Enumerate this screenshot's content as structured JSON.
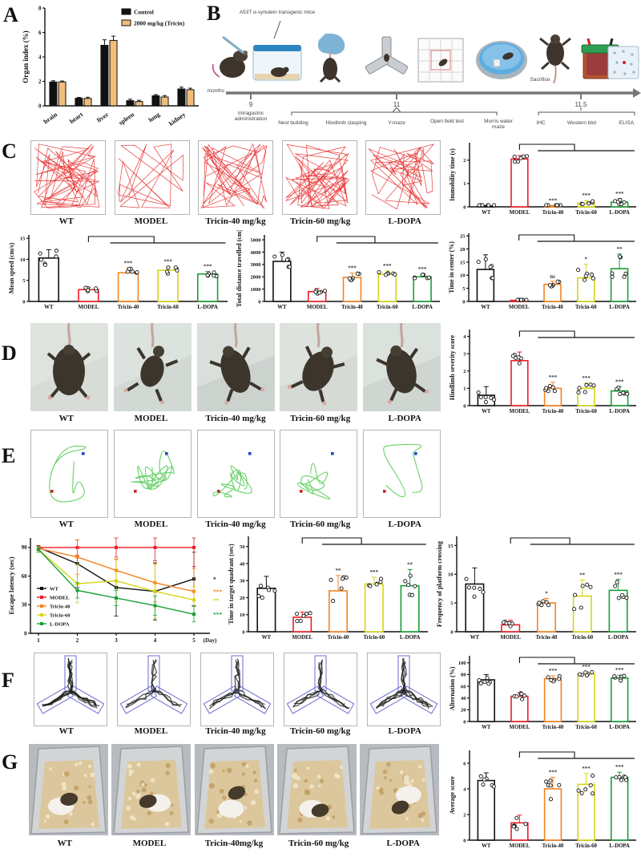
{
  "figure": {
    "panel_labels": {
      "A": "A",
      "B": "B",
      "C": "C",
      "D": "D",
      "E": "E",
      "F": "F",
      "G": "G"
    },
    "groups_full": [
      "WT",
      "MODEL",
      "Tricin-40 mg/kg",
      "Tricin-60 mg/kg",
      "L-DOPA"
    ],
    "groups_full_g": [
      "WT",
      "MODEL",
      "Tricin-40mg/kg",
      "Tricin-60 mg/kg",
      "L-DOPA"
    ],
    "groups_short": [
      "WT",
      "MODEL",
      "Tricin-40",
      "Tricin-60",
      "L-DOPA"
    ],
    "group_colors": [
      "#111111",
      "#ee1c25",
      "#f58220",
      "#d5d517",
      "#18a037"
    ]
  },
  "timeline": {
    "annotation": "A53T α-synulein transgenic mice",
    "axis_label": "months",
    "sacrifice_label": "Sacrifice",
    "tick_9": "9",
    "tick_11": "11",
    "tick_115": "11.5",
    "label_9": "Intragastric administration",
    "tests_11": [
      "Nest building",
      "Hindlimb clasping",
      "Y-maze",
      "Open field test",
      "Morris water maze"
    ],
    "assays_115": [
      "IHC",
      "Western blot",
      "ELISA"
    ]
  },
  "chart_data": [
    {
      "id": "organ-index",
      "type": "grouped-bar",
      "ylabel": "Organ index (%)",
      "categories": [
        "brain",
        "heart",
        "liver",
        "spleen",
        "lung",
        "kidney"
      ],
      "series": [
        {
          "name": "Control",
          "fill": "#111111",
          "values": [
            1.95,
            0.62,
            4.95,
            0.42,
            0.82,
            1.38
          ],
          "errors": [
            0.1,
            0.07,
            0.45,
            0.12,
            0.1,
            0.15
          ]
        },
        {
          "name": "2000 mg/kg (Tricin)",
          "fill": "#f2bc79",
          "values": [
            1.95,
            0.6,
            5.35,
            0.35,
            0.72,
            1.32
          ],
          "errors": [
            0.08,
            0.1,
            0.35,
            0.1,
            0.12,
            0.12
          ]
        }
      ],
      "ylim": [
        0,
        8
      ],
      "yticks": [
        0,
        2,
        4,
        6,
        8
      ],
      "legend_position": "top-right"
    },
    {
      "id": "immobility-time",
      "type": "bar",
      "ylabel": "Immobility time (s)",
      "categories": [
        "WT",
        "MODEL",
        "Tricin-40",
        "Tricin-60",
        "L-DOPA"
      ],
      "values": [
        0.03,
        2.05,
        0.03,
        0.15,
        0.2
      ],
      "errors": [
        0.02,
        0.15,
        0.03,
        0.12,
        0.15
      ],
      "sig": [
        "",
        "",
        "***",
        "***",
        "***"
      ],
      "ylim": [
        0,
        2.75
      ],
      "yticks": [
        0,
        1,
        2
      ],
      "bracket": true
    },
    {
      "id": "mean-speed",
      "type": "bar",
      "ylabel": "Mean speed (cm/s)",
      "categories": [
        "WT",
        "MODEL",
        "Tricin-40",
        "Tricin-60",
        "L-DOPA"
      ],
      "values": [
        10.3,
        2.8,
        6.8,
        7.4,
        6.5
      ],
      "errors": [
        2.0,
        0.6,
        1.1,
        0.9,
        0.6
      ],
      "sig": [
        "",
        "",
        "***",
        "***",
        "***"
      ],
      "ylim": [
        0,
        15.8
      ],
      "yticks": [
        0,
        5,
        10,
        15
      ],
      "bracket": true
    },
    {
      "id": "total-distance",
      "type": "bar",
      "ylabel": "Total distance travelled (cm)",
      "categories": [
        "WT",
        "MODEL",
        "Tricin-40",
        "Tricin-60",
        "L-DOPA"
      ],
      "values": [
        3250,
        800,
        1950,
        2200,
        2000
      ],
      "errors": [
        750,
        250,
        350,
        280,
        200
      ],
      "sig": [
        "",
        "",
        "***",
        "***",
        "***"
      ],
      "ylim": [
        0,
        5400
      ],
      "yticks": [
        0,
        1000,
        2000,
        3000,
        4000,
        5000
      ],
      "bracket": true,
      "mleft": 38
    },
    {
      "id": "time-in-center",
      "type": "bar",
      "ylabel": "Time in center (%)",
      "categories": [
        "WT",
        "MODEL",
        "Tricin-40",
        "Tricin-60",
        "L-DOPA"
      ],
      "values": [
        12.2,
        0.4,
        6.5,
        9,
        12.5
      ],
      "errors": [
        5.6,
        0.3,
        1.2,
        5.2,
        5.6
      ],
      "sig": [
        "",
        "",
        "ns",
        "*",
        "**"
      ],
      "ylim": [
        0,
        26
      ],
      "yticks": [
        0,
        5,
        10,
        15,
        20,
        25
      ],
      "bracket": true
    },
    {
      "id": "hindlimb-severity",
      "type": "bar",
      "ylabel": "Hindlimb severity score",
      "categories": [
        "WT",
        "MODEL",
        "Tricin-40",
        "Tricin-60",
        "L-DOPA"
      ],
      "values": [
        0.6,
        2.6,
        1.0,
        1.0,
        0.85
      ],
      "errors": [
        0.5,
        0.5,
        0.35,
        0.3,
        0.25
      ],
      "sig": [
        "",
        "",
        "***",
        "***",
        "***"
      ],
      "ylim": [
        0,
        4.4
      ],
      "yticks": [
        0,
        1,
        2,
        3,
        4
      ],
      "bracket": true
    },
    {
      "id": "escape-latency",
      "type": "line",
      "ylabel": "Escape latency (sec)",
      "xlabel": "(Day)",
      "x": [
        1,
        2,
        3,
        4,
        5
      ],
      "ylim": [
        0,
        100
      ],
      "yticks": [
        0,
        30,
        60,
        90
      ],
      "series": [
        {
          "name": "WT",
          "color": "#111111",
          "values": [
            90,
            73,
            48,
            44,
            57
          ],
          "errors": [
            2,
            25,
            30,
            30,
            28
          ],
          "sig": "*"
        },
        {
          "name": "MODEL",
          "color": "#ee1c25",
          "values": [
            90,
            90,
            90,
            90,
            90
          ],
          "errors": [
            2,
            8,
            10,
            14,
            20
          ],
          "sig": ""
        },
        {
          "name": "Tricin-40",
          "color": "#f58220",
          "values": [
            89,
            80,
            66,
            53,
            44
          ],
          "errors": [
            2,
            18,
            12,
            20,
            24
          ],
          "sig": "***"
        },
        {
          "name": "Tricin-60",
          "color": "#d5d517",
          "values": [
            88,
            52,
            55,
            44,
            35
          ],
          "errors": [
            3,
            20,
            22,
            28,
            14
          ],
          "sig": "**"
        },
        {
          "name": "L-DOPA",
          "color": "#18a037",
          "values": [
            88,
            45,
            37,
            29,
            20
          ],
          "errors": [
            3,
            8,
            8,
            10,
            8
          ],
          "sig": "***"
        }
      ],
      "legend_position": "bottom-left"
    },
    {
      "id": "target-quadrant",
      "type": "bar",
      "ylabel": "Time in target quadrant (sec)",
      "categories": [
        "WT",
        "MODEL",
        "Tricin-40",
        "Tricin-60",
        "L-DOPA"
      ],
      "values": [
        25.5,
        8.5,
        24,
        28,
        27
      ],
      "errors": [
        7,
        3,
        9,
        4,
        9.5
      ],
      "sig": [
        "",
        "",
        "**",
        "***",
        "**"
      ],
      "ylim": [
        0,
        56
      ],
      "yticks": [
        0,
        10,
        20,
        30,
        40,
        50
      ],
      "bracket": true
    },
    {
      "id": "platform-crossing",
      "type": "bar",
      "ylabel": "Frequency of platform crossing",
      "categories": [
        "WT",
        "MODEL",
        "Tricin-40",
        "Tricin-60",
        "L-DOPA"
      ],
      "values": [
        8.3,
        1.2,
        5.0,
        6.2,
        7.2
      ],
      "errors": [
        2.8,
        0.8,
        0.8,
        2.8,
        1.9
      ],
      "sig": [
        "",
        "",
        "*",
        "**",
        "***"
      ],
      "ylim": [
        0,
        16.6
      ],
      "yticks": [
        0,
        5,
        10,
        15
      ],
      "bracket": true
    },
    {
      "id": "alternation",
      "type": "bar",
      "ylabel": "Alternation (%)",
      "categories": [
        "WT",
        "MODEL",
        "Tricin-40",
        "Tricin-60",
        "L-DOPA"
      ],
      "values": [
        71,
        43,
        73,
        81,
        74
      ],
      "errors": [
        9,
        6,
        5,
        4,
        5
      ],
      "sig": [
        "",
        "",
        "***",
        "***",
        "***"
      ],
      "ylim": [
        0,
        112
      ],
      "yticks": [
        0,
        20,
        40,
        60,
        80,
        100
      ],
      "bracket": true
    },
    {
      "id": "average-score",
      "type": "bar",
      "ylabel": "Average score",
      "categories": [
        "WT",
        "MODEL",
        "Tricin-40",
        "Tricin-60",
        "L-DOPA"
      ],
      "values": [
        4.65,
        1.35,
        4.0,
        4.35,
        4.9
      ],
      "errors": [
        0.6,
        0.6,
        0.9,
        0.85,
        0.4
      ],
      "sig": [
        "",
        "",
        "***",
        "***",
        "***"
      ],
      "ylim": [
        0,
        7
      ],
      "yticks": [
        0,
        2,
        4,
        6
      ],
      "bracket": true
    }
  ]
}
